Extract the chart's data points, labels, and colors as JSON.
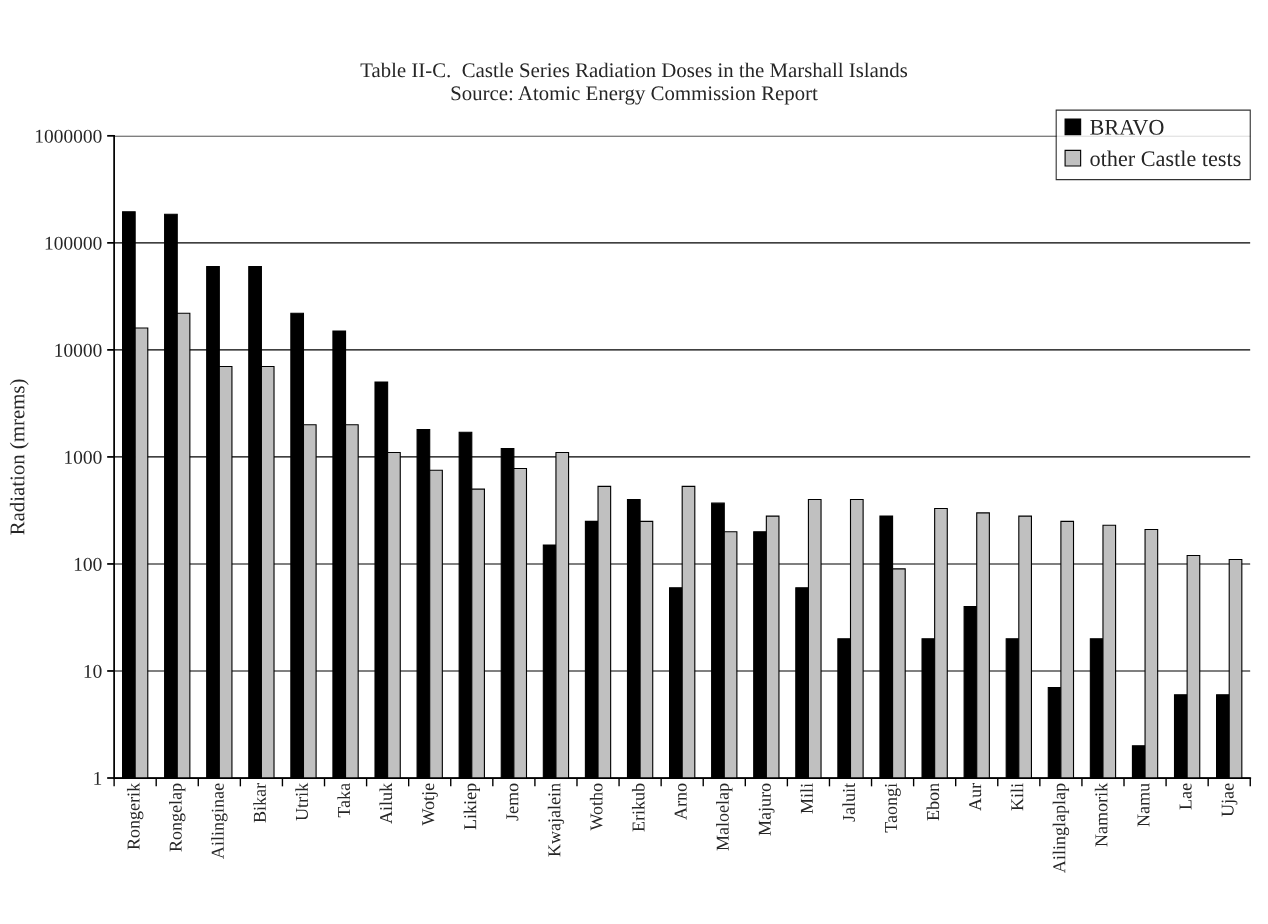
{
  "chart_data": {
    "type": "bar",
    "title": "Table II-C.  Castle Series Radiation Doses in the Marshall Islands",
    "subtitle": "Source: Atomic Energy Commission Report",
    "ylabel": "Radiation (mrems)",
    "categories": [
      "Rongerik",
      "Rongelap",
      "Ailinginae",
      "Bikar",
      "Utrik",
      "Taka",
      "Ailuk",
      "Wotje",
      "Likiep",
      "Jemo",
      "Kwajalein",
      "Wotho",
      "Erikub",
      "Arno",
      "Maloelap",
      "Majuro",
      "Mili",
      "Jaluit",
      "Taongi",
      "Ebon",
      "Aur",
      "Kili",
      "Ailinglaplap",
      "Namorik",
      "Namu",
      "Lae",
      "Ujae"
    ],
    "series": [
      {
        "name": "BRAVO",
        "color": "#000000",
        "values": [
          195000,
          185000,
          60000,
          60000,
          22000,
          15000,
          5000,
          1800,
          1700,
          1200,
          150,
          250,
          400,
          60,
          370,
          200,
          60,
          20,
          280,
          20,
          40,
          20,
          7,
          20,
          2,
          6,
          6
        ]
      },
      {
        "name": "other Castle tests",
        "color": "#c0c0c0",
        "values": [
          16000,
          22000,
          7000,
          7000,
          2000,
          2000,
          1100,
          750,
          500,
          780,
          1100,
          530,
          250,
          530,
          200,
          280,
          400,
          400,
          90,
          330,
          300,
          280,
          250,
          230,
          210,
          120,
          110
        ]
      }
    ],
    "log": "y",
    "ylim": [
      1,
      1000000
    ],
    "yticks": [
      1,
      10,
      100,
      1000,
      10000,
      100000,
      1000000
    ],
    "grid": "y",
    "legend": "top right"
  }
}
